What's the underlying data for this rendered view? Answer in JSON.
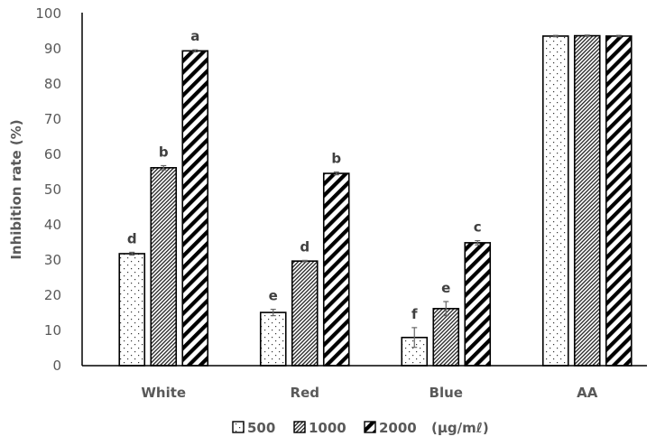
{
  "chart_data": {
    "type": "bar",
    "title": "",
    "xlabel": "",
    "ylabel": "Inhibition rate (%)",
    "ylim": [
      0,
      100
    ],
    "yticks": [
      0,
      10,
      20,
      30,
      40,
      50,
      60,
      70,
      80,
      90,
      100
    ],
    "grid": false,
    "legend_position": "bottom",
    "legend_unit": "(μg/mℓ)",
    "categories": [
      "White",
      "Red",
      "Blue",
      "AA"
    ],
    "series": [
      {
        "name": "500",
        "pattern": "dots",
        "values": [
          31.8,
          15.1,
          8.0,
          93.6
        ],
        "errors": [
          0.4,
          0.9,
          2.8,
          0.2
        ],
        "letters": [
          "d",
          "e",
          "f",
          ""
        ]
      },
      {
        "name": "1000",
        "pattern": "fine-diagonal",
        "values": [
          56.2,
          29.7,
          16.2,
          93.7
        ],
        "errors": [
          0.6,
          0.2,
          2.0,
          0.2
        ],
        "letters": [
          "b",
          "d",
          "e",
          ""
        ]
      },
      {
        "name": "2000",
        "pattern": "wide-diagonal",
        "values": [
          89.4,
          54.6,
          34.9,
          93.6
        ],
        "errors": [
          0.3,
          0.4,
          0.6,
          0.2
        ],
        "letters": [
          "a",
          "b",
          "c",
          ""
        ]
      }
    ]
  }
}
